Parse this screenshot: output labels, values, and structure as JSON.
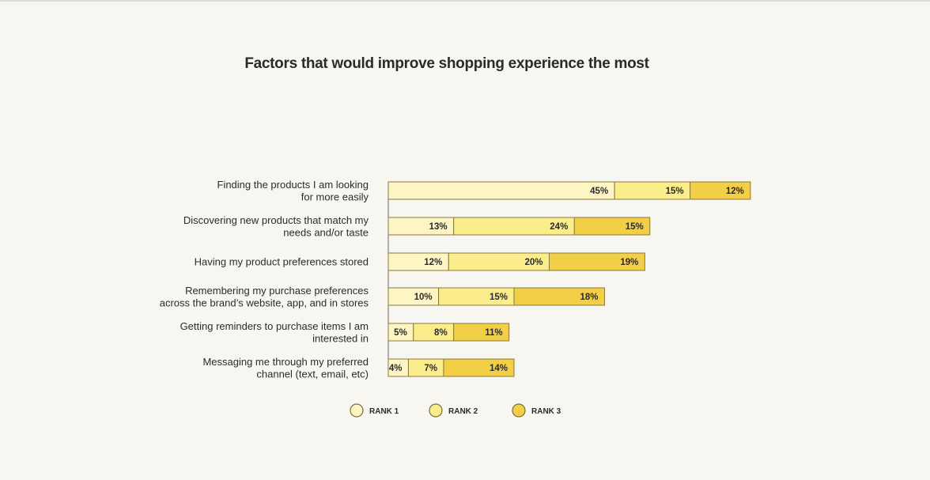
{
  "chart_data": {
    "type": "bar",
    "orientation": "horizontal",
    "stacked": true,
    "title": "Factors that would improve shopping experience the most",
    "categories": [
      [
        "Finding the products I am looking",
        "for more easily"
      ],
      [
        "Discovering new products that match my",
        "needs and/or taste"
      ],
      [
        "Having my product preferences stored"
      ],
      [
        "Remembering my purchase preferences",
        "across the brand’s website, app, and in stores"
      ],
      [
        "Getting reminders to purchase items I am",
        "interested in"
      ],
      [
        "Messaging me through my preferred",
        "channel (text, email, etc)"
      ]
    ],
    "series": [
      {
        "name": "RANK 1",
        "color": "#fdf5c4",
        "values": [
          45,
          13,
          12,
          10,
          5,
          4
        ]
      },
      {
        "name": "RANK 2",
        "color": "#fbec8c",
        "values": [
          15,
          24,
          20,
          15,
          8,
          7
        ]
      },
      {
        "name": "RANK 3",
        "color": "#f3cf47",
        "values": [
          12,
          15,
          19,
          18,
          11,
          14
        ]
      }
    ],
    "value_suffix": "%",
    "legend_position": "bottom",
    "grid": false,
    "xlim": [
      0,
      72
    ]
  }
}
